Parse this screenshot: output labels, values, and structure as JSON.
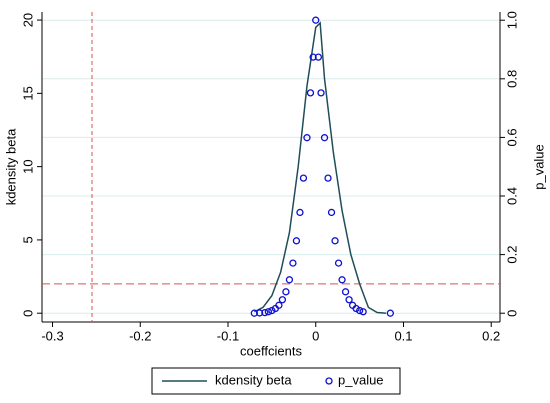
{
  "chart_data": {
    "type": "line-scatter",
    "xlabel": "coeffcients",
    "ylabel": "kdensity beta",
    "y2label": "p_value",
    "xlim": [
      -0.312,
      0.21
    ],
    "xticks": [
      -0.3,
      -0.2,
      -0.1,
      0,
      0.1,
      0.2
    ],
    "ylim": [
      -0.6,
      20.55
    ],
    "yticks": [
      0,
      5,
      10,
      15,
      20
    ],
    "y2lim": [
      -0.03,
      1.028
    ],
    "y2ticks": [
      0,
      0.2,
      0.4,
      0.6,
      0.8,
      {
        "value": 1,
        "label": "1.0"
      }
    ],
    "grid": "y2",
    "legend": "bottom",
    "reference_lines": [
      {
        "axis": "x",
        "value": -0.255,
        "color": "#d9534f"
      },
      {
        "axis": "y2",
        "value": 0.1,
        "color": "#d9534f"
      }
    ],
    "series": [
      {
        "name": "kdensity beta",
        "kind": "line",
        "color": "#1f4e5a",
        "x": [
          -0.07,
          -0.06,
          -0.05,
          -0.04,
          -0.03,
          -0.02,
          -0.01,
          0,
          0.005,
          0.01,
          0.02,
          0.03,
          0.04,
          0.05,
          0.06,
          0.07,
          0.08
        ],
        "values": [
          0.1,
          0.4,
          1.2,
          2.8,
          5.5,
          10,
          15.5,
          19.5,
          19.8,
          16,
          11,
          7,
          4,
          2,
          0.4,
          0.05,
          0
        ]
      },
      {
        "name": "p_value",
        "kind": "scatter",
        "axis": "y2",
        "color": "#1010d0",
        "x": [
          -0.07,
          -0.064,
          -0.058,
          -0.054,
          -0.05,
          -0.046,
          -0.042,
          -0.038,
          -0.034,
          -0.03,
          -0.026,
          -0.022,
          -0.018,
          -0.014,
          -0.01,
          -0.006,
          -0.003,
          0,
          0.003,
          0.006,
          0.01,
          0.014,
          0.018,
          0.022,
          0.026,
          0.03,
          0.034,
          0.038,
          0.042,
          0.046,
          0.05,
          0.054,
          0.085
        ],
        "values": [
          0,
          0.001,
          0.002,
          0.005,
          0.009,
          0.016,
          0.027,
          0.046,
          0.073,
          0.114,
          0.171,
          0.247,
          0.344,
          0.461,
          0.599,
          0.752,
          0.874,
          1,
          0.874,
          0.752,
          0.599,
          0.461,
          0.344,
          0.247,
          0.171,
          0.114,
          0.073,
          0.046,
          0.027,
          0.016,
          0.009,
          0.005,
          0
        ]
      }
    ]
  }
}
